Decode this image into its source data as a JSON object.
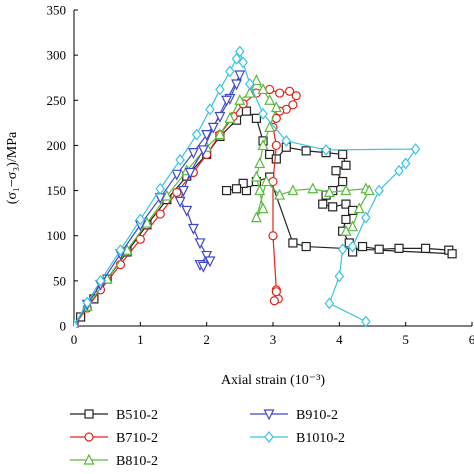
{
  "chart_data": {
    "type": "line",
    "xlabel": "Axial strain (10⁻³)",
    "ylabel": "(σ₁−σ₃)/MPa",
    "xlim": [
      0,
      6
    ],
    "ylim": [
      0,
      350
    ],
    "xticks": [
      "0",
      "1",
      "2",
      "3",
      "4",
      "5",
      "6"
    ],
    "yticks": [
      "0",
      "50",
      "100",
      "150",
      "200",
      "250",
      "300",
      "350"
    ],
    "grid": false,
    "legend_position": "bottom",
    "series": [
      {
        "name": "B510-2",
        "color": "#222222",
        "marker": "square",
        "points": [
          [
            0,
            0
          ],
          [
            0.1,
            10
          ],
          [
            0.3,
            30
          ],
          [
            0.5,
            52
          ],
          [
            0.8,
            82
          ],
          [
            1.1,
            112
          ],
          [
            1.4,
            140
          ],
          [
            1.7,
            166
          ],
          [
            2.0,
            190
          ],
          [
            2.2,
            210
          ],
          [
            2.45,
            228
          ],
          [
            2.6,
            238
          ],
          [
            2.75,
            230
          ],
          [
            2.85,
            205
          ],
          [
            2.95,
            190
          ],
          [
            3.05,
            185
          ],
          [
            3.2,
            198
          ],
          [
            3.5,
            194
          ],
          [
            3.8,
            192
          ],
          [
            4.05,
            190
          ],
          [
            4.1,
            178
          ],
          [
            3.95,
            172
          ],
          [
            4.05,
            160
          ],
          [
            3.9,
            150
          ],
          [
            3.8,
            145
          ],
          [
            3.75,
            135
          ],
          [
            3.9,
            132
          ],
          [
            4.1,
            135
          ],
          [
            4.2,
            128
          ],
          [
            4.1,
            118
          ],
          [
            4.05,
            105
          ],
          [
            4.15,
            92
          ],
          [
            4.2,
            82
          ],
          [
            4.35,
            88
          ],
          [
            4.6,
            85
          ],
          [
            4.9,
            86
          ],
          [
            5.3,
            86
          ],
          [
            5.65,
            84
          ],
          [
            5.7,
            80
          ],
          [
            3.5,
            88
          ],
          [
            3.3,
            92
          ],
          [
            2.95,
            165
          ],
          [
            2.75,
            160
          ],
          [
            2.6,
            150
          ],
          [
            2.55,
            158
          ],
          [
            2.45,
            152
          ],
          [
            2.3,
            150
          ]
        ]
      },
      {
        "name": "B710-2",
        "color": "#e2231a",
        "marker": "circle",
        "points": [
          [
            0,
            0
          ],
          [
            0.2,
            20
          ],
          [
            0.4,
            40
          ],
          [
            0.7,
            68
          ],
          [
            1.0,
            96
          ],
          [
            1.3,
            124
          ],
          [
            1.55,
            148
          ],
          [
            1.8,
            170
          ],
          [
            2.0,
            190
          ],
          [
            2.2,
            212
          ],
          [
            2.4,
            232
          ],
          [
            2.55,
            246
          ],
          [
            2.75,
            258
          ],
          [
            2.95,
            262
          ],
          [
            3.1,
            258
          ],
          [
            3.25,
            260
          ],
          [
            3.35,
            255
          ],
          [
            3.3,
            245
          ],
          [
            3.2,
            240
          ],
          [
            3.1,
            238
          ],
          [
            3.05,
            230
          ],
          [
            3.0,
            220
          ],
          [
            3.05,
            200
          ],
          [
            3.0,
            160
          ],
          [
            3.0,
            100
          ],
          [
            3.05,
            40
          ],
          [
            3.08,
            30
          ],
          [
            3.02,
            28
          ],
          [
            3.05,
            38
          ]
        ]
      },
      {
        "name": "B810-2",
        "color": "#5aba3e",
        "marker": "triangle-up",
        "points": [
          [
            0,
            0
          ],
          [
            0.2,
            22
          ],
          [
            0.5,
            52
          ],
          [
            0.8,
            84
          ],
          [
            1.1,
            114
          ],
          [
            1.4,
            144
          ],
          [
            1.7,
            172
          ],
          [
            2.0,
            198
          ],
          [
            2.2,
            212
          ],
          [
            2.35,
            230
          ],
          [
            2.5,
            250
          ],
          [
            2.65,
            258
          ],
          [
            2.75,
            272
          ],
          [
            2.85,
            262
          ],
          [
            2.95,
            250
          ],
          [
            3.05,
            242
          ],
          [
            2.95,
            220
          ],
          [
            2.85,
            200
          ],
          [
            2.8,
            180
          ],
          [
            2.75,
            165
          ],
          [
            2.8,
            150
          ],
          [
            2.85,
            130
          ],
          [
            2.75,
            120
          ],
          [
            2.9,
            160
          ],
          [
            3.1,
            145
          ],
          [
            3.3,
            150
          ],
          [
            3.6,
            152
          ],
          [
            3.85,
            148
          ],
          [
            4.1,
            150
          ],
          [
            4.4,
            152
          ],
          [
            4.45,
            150
          ],
          [
            4.3,
            130
          ],
          [
            4.2,
            110
          ],
          [
            4.1,
            105
          ]
        ]
      },
      {
        "name": "B910-2",
        "color": "#3f48cc",
        "marker": "triangle-down",
        "points": [
          [
            0,
            0
          ],
          [
            0.2,
            24
          ],
          [
            0.4,
            46
          ],
          [
            0.7,
            80
          ],
          [
            1.0,
            112
          ],
          [
            1.3,
            142
          ],
          [
            1.55,
            168
          ],
          [
            1.8,
            192
          ],
          [
            2.0,
            212
          ],
          [
            2.2,
            232
          ],
          [
            2.35,
            252
          ],
          [
            2.45,
            268
          ],
          [
            2.5,
            278
          ],
          [
            2.3,
            250
          ],
          [
            2.1,
            220
          ],
          [
            1.95,
            195
          ],
          [
            1.75,
            170
          ],
          [
            1.65,
            150
          ],
          [
            1.6,
            138
          ],
          [
            1.7,
            128
          ],
          [
            1.8,
            108
          ],
          [
            1.9,
            92
          ],
          [
            2.0,
            78
          ],
          [
            1.9,
            68
          ],
          [
            2.05,
            72
          ],
          [
            1.95,
            66
          ]
        ]
      },
      {
        "name": "B1010-2",
        "color": "#39c3e3",
        "marker": "diamond",
        "points": [
          [
            0,
            0
          ],
          [
            0.2,
            26
          ],
          [
            0.4,
            50
          ],
          [
            0.7,
            84
          ],
          [
            1.0,
            118
          ],
          [
            1.3,
            152
          ],
          [
            1.6,
            184
          ],
          [
            1.85,
            212
          ],
          [
            2.05,
            240
          ],
          [
            2.2,
            262
          ],
          [
            2.35,
            282
          ],
          [
            2.45,
            296
          ],
          [
            2.5,
            304
          ],
          [
            2.55,
            292
          ],
          [
            2.65,
            268
          ],
          [
            2.85,
            235
          ],
          [
            3.2,
            205
          ],
          [
            3.8,
            195
          ],
          [
            5.15,
            196
          ],
          [
            5.0,
            180
          ],
          [
            4.9,
            172
          ],
          [
            4.6,
            150
          ],
          [
            4.4,
            120
          ],
          [
            4.2,
            88
          ],
          [
            4.05,
            85
          ],
          [
            4.0,
            55
          ],
          [
            3.85,
            25
          ],
          [
            4.4,
            5
          ]
        ]
      }
    ]
  }
}
